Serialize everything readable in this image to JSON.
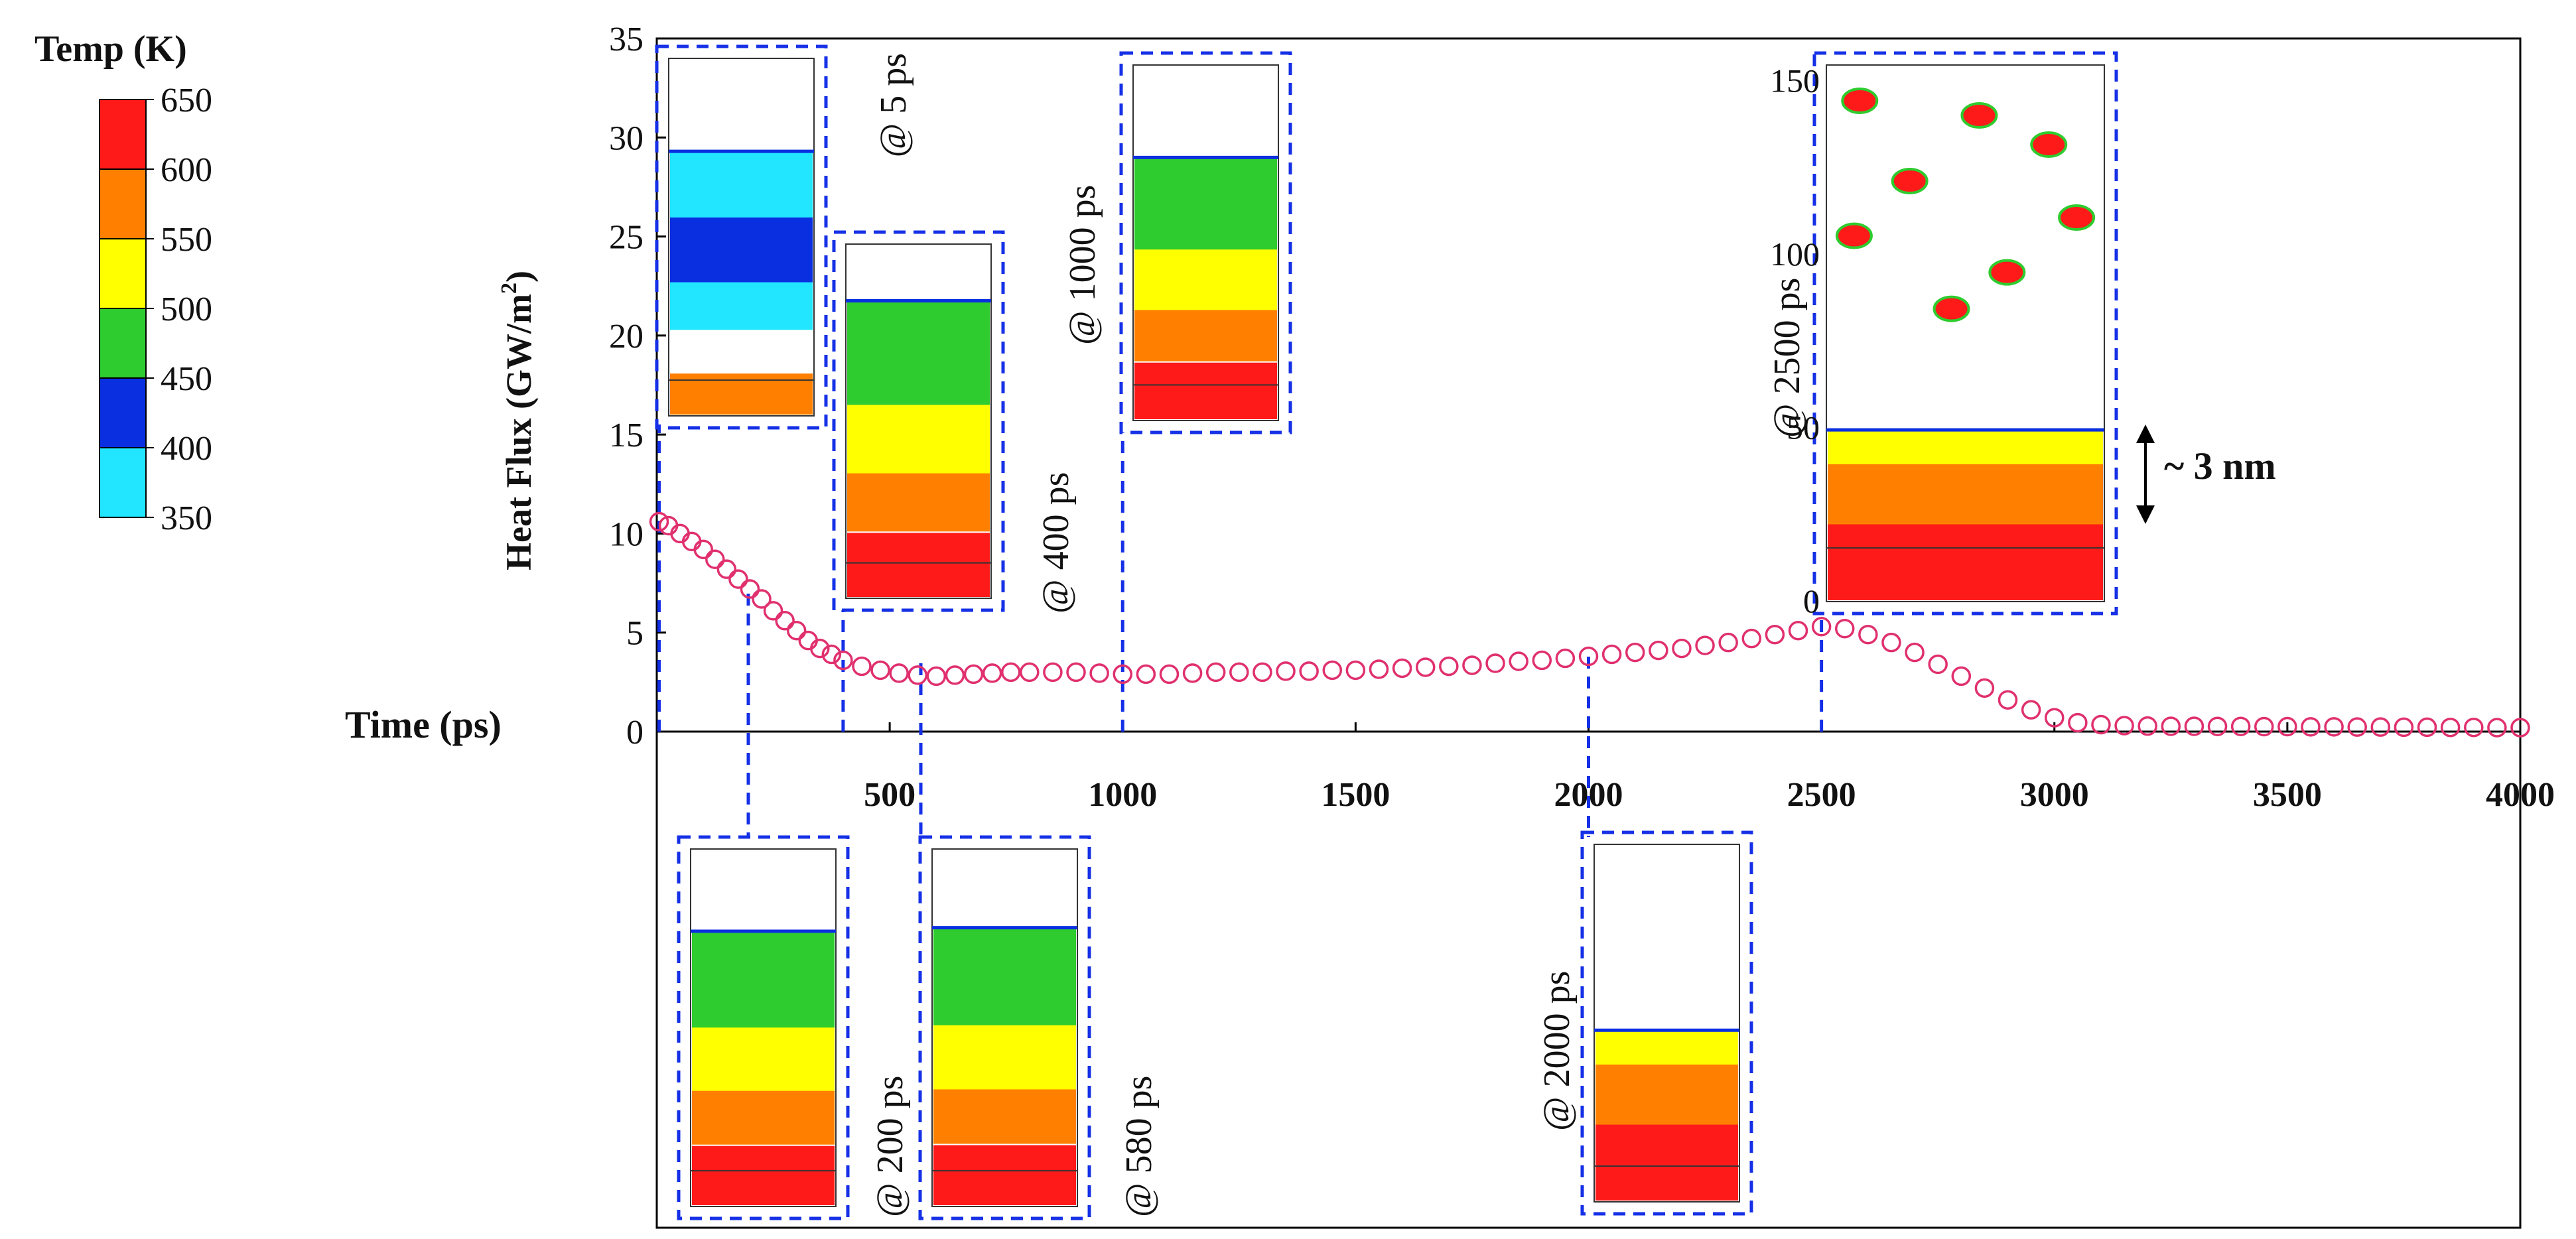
{
  "chart_data": {
    "type": "scatter",
    "title": "",
    "xlabel": "Time (ps)",
    "ylabel_main": "Heat Flux (GW/m",
    "ylabel_sup": "2",
    "ylabel_close": ")",
    "xlim": [
      0,
      4000
    ],
    "ylim": [
      0,
      35
    ],
    "x_ticks": [
      500,
      1000,
      1500,
      2000,
      2500,
      3000,
      3500,
      4000
    ],
    "y_ticks": [
      0,
      5,
      10,
      15,
      20,
      25,
      30,
      35
    ],
    "series": [
      {
        "name": "Heat Flux",
        "marker": "open-circle",
        "color": "#e0306e",
        "x": [
          5,
          25,
          50,
          75,
          100,
          125,
          150,
          175,
          200,
          225,
          250,
          275,
          300,
          325,
          350,
          375,
          400,
          440,
          480,
          520,
          560,
          600,
          640,
          680,
          720,
          760,
          800,
          850,
          900,
          950,
          1000,
          1050,
          1100,
          1150,
          1200,
          1250,
          1300,
          1350,
          1400,
          1450,
          1500,
          1550,
          1600,
          1650,
          1700,
          1750,
          1800,
          1850,
          1900,
          1950,
          2000,
          2050,
          2100,
          2150,
          2200,
          2250,
          2300,
          2350,
          2400,
          2450,
          2500,
          2550,
          2600,
          2650,
          2700,
          2750,
          2800,
          2850,
          2900,
          2950,
          3000,
          3050,
          3100,
          3150,
          3200,
          3250,
          3300,
          3350,
          3400,
          3450,
          3500,
          3550,
          3600,
          3650,
          3700,
          3750,
          3800,
          3850,
          3900,
          3950,
          4000
        ],
        "y": [
          10.6,
          10.4,
          10.0,
          9.6,
          9.2,
          8.7,
          8.2,
          7.7,
          7.2,
          6.7,
          6.1,
          5.6,
          5.1,
          4.6,
          4.2,
          3.9,
          3.6,
          3.3,
          3.1,
          2.95,
          2.85,
          2.8,
          2.85,
          2.9,
          2.95,
          3.0,
          3.0,
          3.0,
          3.0,
          2.95,
          2.9,
          2.9,
          2.9,
          2.95,
          3.0,
          3.0,
          3.0,
          3.05,
          3.05,
          3.1,
          3.1,
          3.15,
          3.2,
          3.25,
          3.3,
          3.35,
          3.45,
          3.55,
          3.6,
          3.7,
          3.8,
          3.9,
          4.0,
          4.1,
          4.2,
          4.35,
          4.5,
          4.7,
          4.9,
          5.1,
          5.3,
          5.2,
          4.9,
          4.5,
          4.0,
          3.4,
          2.8,
          2.2,
          1.6,
          1.1,
          0.7,
          0.45,
          0.35,
          0.3,
          0.28,
          0.27,
          0.27,
          0.26,
          0.26,
          0.25,
          0.25,
          0.24,
          0.24,
          0.23,
          0.23,
          0.22,
          0.22,
          0.21,
          0.21,
          0.2,
          0.2
        ]
      }
    ],
    "colorbar": {
      "title": "Temp (K)",
      "labels": [
        "650",
        "600",
        "550",
        "500",
        "450",
        "400",
        "350"
      ],
      "colors": [
        "#ff1a1a",
        "#ff8000",
        "#ffff00",
        "#2ecc2e",
        "#0a2fe0",
        "#22e6ff"
      ]
    },
    "snapshots": [
      {
        "label": "@ 5 ps",
        "time": 5
      },
      {
        "label": "@ 200 ps",
        "time": 200
      },
      {
        "label": "@ 400 ps",
        "time": 400
      },
      {
        "label": "@ 580 ps",
        "time": 580
      },
      {
        "label": "@ 1000 ps",
        "time": 1000
      },
      {
        "label": "@ 2000 ps",
        "time": 2000
      },
      {
        "label": "@ 2500 ps",
        "time": 2500
      }
    ],
    "inset_axis": {
      "ticks": [
        "0",
        "50",
        "100",
        "150"
      ]
    },
    "annotation": "~ 3 nm"
  }
}
